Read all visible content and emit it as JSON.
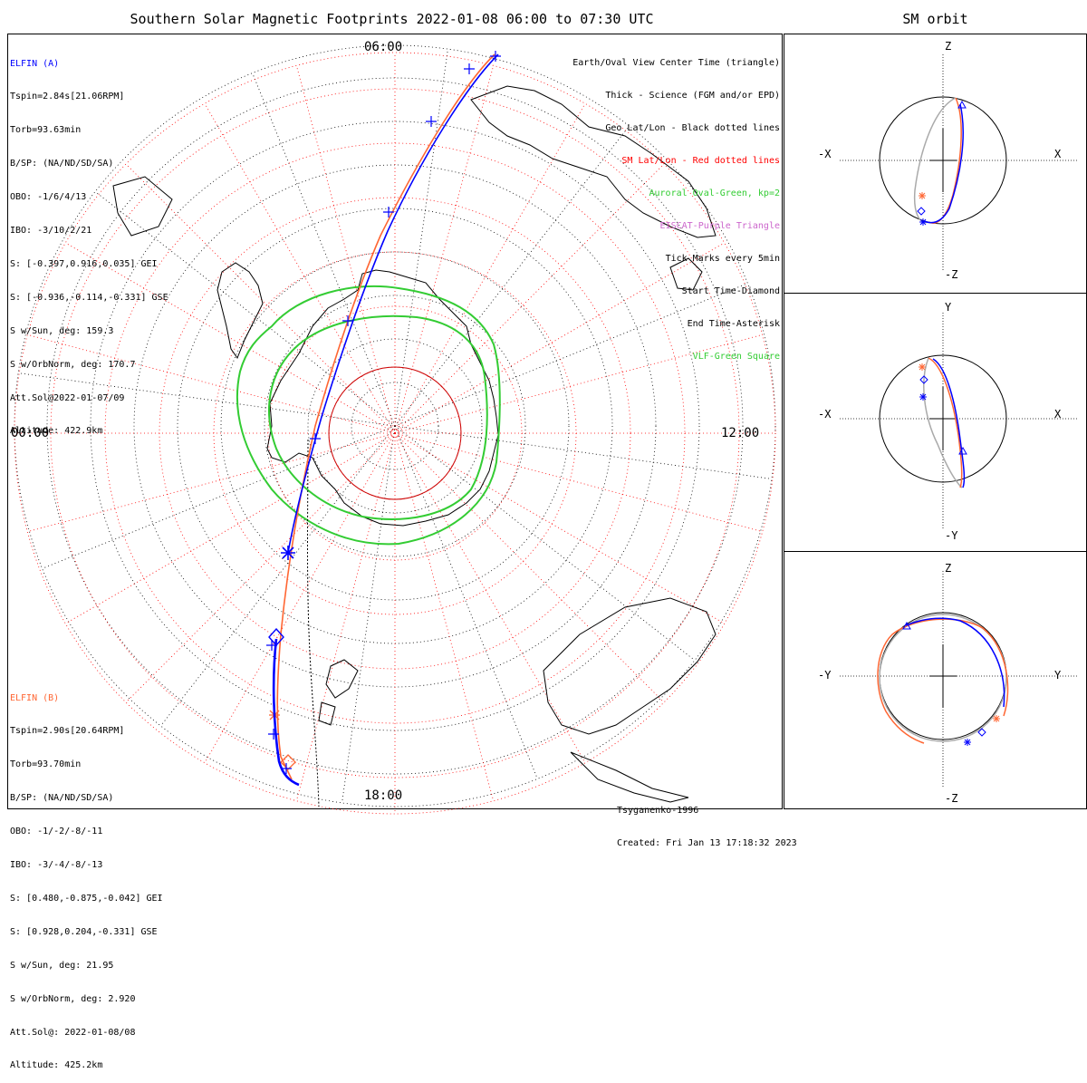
{
  "title": "Southern Solar Magnetic Footprints 2022-01-08 06:00 to 07:30 UTC",
  "sm_title": "SM orbit",
  "hour_labels": {
    "top": "06:00",
    "left": "00:00",
    "right": "12:00",
    "bottom": "18:00"
  },
  "elfin_a": {
    "name": "ELFIN (A)",
    "color": "#0000ff",
    "lines": [
      "Tspin=2.84s[21.06RPM]",
      "Torb=93.63min",
      "B/SP: (NA/ND/SD/SA)",
      "OBO: -1/6/4/13",
      "IBO: -3/10/2/21",
      "S: [-0.397,0.916,0.035] GEI",
      "S: [-0.936,-0.114,-0.331] GSE",
      "S w/Sun, deg: 159.3",
      "S w/OrbNorm, deg: 170.7",
      "Att.Sol@2022-01-07/09",
      "Altitude: 422.9km"
    ]
  },
  "elfin_b": {
    "name": "ELFIN (B)",
    "color": "#ff6633",
    "lines": [
      "Tspin=2.90s[20.64RPM]",
      "Torb=93.70min",
      "B/SP: (NA/ND/SD/SA)",
      "OBO: -1/-2/-8/-11",
      "IBO: -3/-4/-8/-13",
      "S: [0.480,-0.875,-0.042] GEI",
      "S: [0.928,0.204,-0.331] GSE",
      "S w/Sun, deg: 21.95",
      "S w/OrbNorm, deg: 2.920",
      "Att.Sol@: 2022-01-08/08",
      "Altitude: 425.2km"
    ]
  },
  "legend": [
    {
      "text": "Earth/Oval View Center Time (triangle)",
      "color": "#000000"
    },
    {
      "text": "Thick - Science (FGM and/or EPD)",
      "color": "#000000"
    },
    {
      "text": "Geo Lat/Lon - Black dotted lines",
      "color": "#000000"
    },
    {
      "text": "SM Lat/Lon - Red dotted lines",
      "color": "#ff0000"
    },
    {
      "text": "Auroral Oval-Green, kp=2",
      "color": "#33cc33"
    },
    {
      "text": "EISCAT-Purple Triangle",
      "color": "#cc66cc"
    },
    {
      "text": "Tick Marks every 5min",
      "color": "#000000"
    },
    {
      "text": "Start Time-Diamond",
      "color": "#000000"
    },
    {
      "text": "End Time-Asterisk",
      "color": "#000000"
    },
    {
      "text": "VLF-Green Square",
      "color": "#33cc33"
    }
  ],
  "footer": {
    "model": "Tsyganenko-1996",
    "created": "Created: Fri Jan 13 17:18:32 2023"
  },
  "panels": [
    {
      "top": "Z",
      "bottom": "-Z",
      "left": "-X",
      "right": "X"
    },
    {
      "top": "Y",
      "bottom": "-Y",
      "left": "-X",
      "right": "X"
    },
    {
      "top": "Z",
      "bottom": "-Z",
      "left": "-Y",
      "right": "Y"
    }
  ],
  "colors": {
    "elfin_a": "#0000ff",
    "elfin_b": "#ff6633",
    "sm_grid": "#ff0000",
    "oval": "#33cc33",
    "orbit_gray": "#aaaaaa"
  }
}
